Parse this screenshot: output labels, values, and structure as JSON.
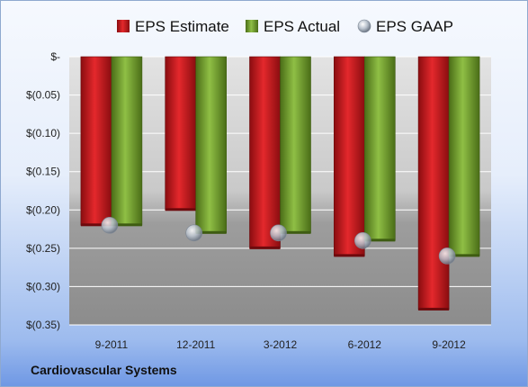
{
  "company": "Cardiovascular Systems",
  "chart_data": {
    "type": "bar",
    "title": "",
    "xlabel": "",
    "ylabel": "",
    "categories": [
      "9-2011",
      "12-2011",
      "3-2012",
      "6-2012",
      "9-2012"
    ],
    "series": [
      {
        "name": "EPS Estimate",
        "kind": "bar",
        "color": "#c0161b",
        "values": [
          -0.22,
          -0.2,
          -0.25,
          -0.26,
          -0.33
        ]
      },
      {
        "name": "EPS Actual",
        "kind": "bar",
        "color": "#6f9a2c",
        "values": [
          -0.22,
          -0.23,
          -0.23,
          -0.24,
          -0.26
        ]
      },
      {
        "name": "EPS GAAP",
        "kind": "marker",
        "color": "#b8c3d0",
        "values": [
          -0.22,
          -0.23,
          -0.23,
          -0.24,
          -0.26
        ]
      }
    ],
    "ylim": [
      -0.35,
      0
    ],
    "yticks": [
      0,
      -0.05,
      -0.1,
      -0.15,
      -0.2,
      -0.25,
      -0.3,
      -0.35
    ],
    "ytick_labels": [
      "$-",
      "$(0.05)",
      "$(0.10)",
      "$(0.15)",
      "$(0.20)",
      "$(0.25)",
      "$(0.30)",
      "$(0.35)"
    ],
    "grid": true,
    "legend": "top"
  }
}
